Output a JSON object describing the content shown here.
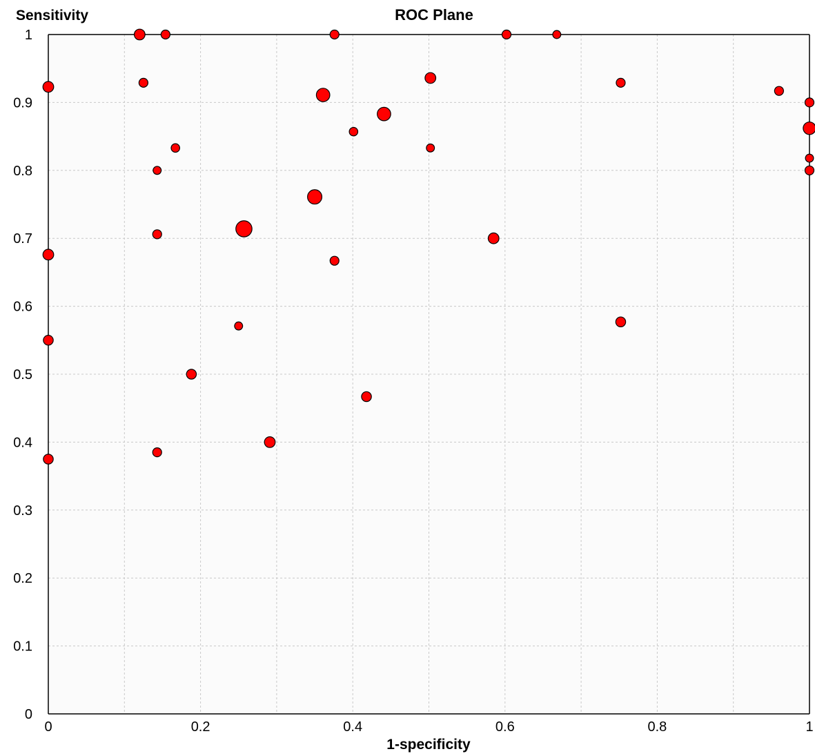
{
  "chart_data": {
    "type": "scatter",
    "title": "ROC Plane",
    "xlabel": "1-specificity",
    "ylabel": "Sensitivity",
    "xlim": [
      0,
      1
    ],
    "ylim": [
      0,
      1
    ],
    "x_ticks": [
      "0",
      "0.2",
      "0.4",
      "0.6",
      "0.8",
      "1"
    ],
    "x_tick_values": [
      0,
      0.2,
      0.4,
      0.6,
      0.8,
      1
    ],
    "y_ticks": [
      "0",
      "0.1",
      "0.2",
      "0.3",
      "0.4",
      "0.5",
      "0.6",
      "0.7",
      "0.8",
      "0.9",
      "1"
    ],
    "y_tick_values": [
      0,
      0.1,
      0.2,
      0.3,
      0.4,
      0.5,
      0.6,
      0.7,
      0.8,
      0.9,
      1
    ],
    "grid": true,
    "marker_color": "#ff0000",
    "marker_edge_color": "#000000",
    "series": [
      {
        "points": [
          {
            "x": 0.12,
            "y": 1.0,
            "size": 1.2
          },
          {
            "x": 0.154,
            "y": 1.0,
            "size": 1.0
          },
          {
            "x": 0.376,
            "y": 1.0,
            "size": 1.0
          },
          {
            "x": 0.602,
            "y": 1.0,
            "size": 1.0
          },
          {
            "x": 0.668,
            "y": 1.0,
            "size": 0.9
          },
          {
            "x": 0.0,
            "y": 0.923,
            "size": 1.2
          },
          {
            "x": 0.125,
            "y": 0.929,
            "size": 1.0
          },
          {
            "x": 0.502,
            "y": 0.936,
            "size": 1.2
          },
          {
            "x": 0.752,
            "y": 0.929,
            "size": 1.0
          },
          {
            "x": 0.96,
            "y": 0.917,
            "size": 1.0
          },
          {
            "x": 1.0,
            "y": 0.9,
            "size": 1.0
          },
          {
            "x": 0.361,
            "y": 0.911,
            "size": 1.5
          },
          {
            "x": 0.441,
            "y": 0.883,
            "size": 1.5
          },
          {
            "x": 0.401,
            "y": 0.857,
            "size": 0.95
          },
          {
            "x": 1.0,
            "y": 0.862,
            "size": 1.4
          },
          {
            "x": 0.167,
            "y": 0.833,
            "size": 0.95
          },
          {
            "x": 0.502,
            "y": 0.833,
            "size": 0.9
          },
          {
            "x": 1.0,
            "y": 0.818,
            "size": 0.9
          },
          {
            "x": 0.143,
            "y": 0.8,
            "size": 0.9
          },
          {
            "x": 1.0,
            "y": 0.8,
            "size": 1.0
          },
          {
            "x": 0.35,
            "y": 0.761,
            "size": 1.6
          },
          {
            "x": 0.257,
            "y": 0.714,
            "size": 1.8
          },
          {
            "x": 0.143,
            "y": 0.706,
            "size": 1.0
          },
          {
            "x": 0.585,
            "y": 0.7,
            "size": 1.2
          },
          {
            "x": 0.0,
            "y": 0.676,
            "size": 1.2
          },
          {
            "x": 0.376,
            "y": 0.667,
            "size": 1.0
          },
          {
            "x": 0.25,
            "y": 0.571,
            "size": 0.9
          },
          {
            "x": 0.752,
            "y": 0.577,
            "size": 1.1
          },
          {
            "x": 0.0,
            "y": 0.55,
            "size": 1.1
          },
          {
            "x": 0.188,
            "y": 0.5,
            "size": 1.1
          },
          {
            "x": 0.418,
            "y": 0.467,
            "size": 1.1
          },
          {
            "x": 0.291,
            "y": 0.4,
            "size": 1.2
          },
          {
            "x": 0.143,
            "y": 0.385,
            "size": 1.0
          },
          {
            "x": 0.0,
            "y": 0.375,
            "size": 1.1
          }
        ]
      }
    ]
  }
}
